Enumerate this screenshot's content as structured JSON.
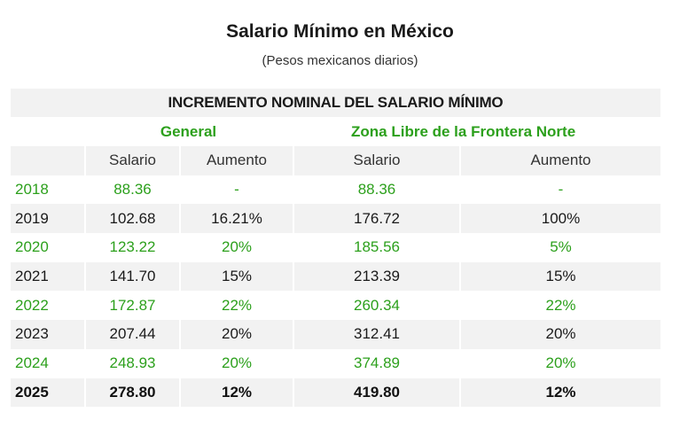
{
  "title": "Salario Mínimo en México",
  "subtitle": "(Pesos mexicanos diarios)",
  "table": {
    "band_title": "INCREMENTO NOMINAL DEL SALARIO MÍNIMO",
    "group_general": "General",
    "group_frontera": "Zona Libre de la Frontera Norte",
    "col_salario": "Salario",
    "col_aumento": "Aumento",
    "accent_color": "#2ca01c",
    "rows": [
      {
        "year": "2018",
        "gen_salario": "88.36",
        "gen_aumento": "-",
        "zlfn_salario": "88.36",
        "zlfn_aumento": "-"
      },
      {
        "year": "2019",
        "gen_salario": "102.68",
        "gen_aumento": "16.21%",
        "zlfn_salario": "176.72",
        "zlfn_aumento": "100%"
      },
      {
        "year": "2020",
        "gen_salario": "123.22",
        "gen_aumento": "20%",
        "zlfn_salario": "185.56",
        "zlfn_aumento": "5%"
      },
      {
        "year": "2021",
        "gen_salario": "141.70",
        "gen_aumento": "15%",
        "zlfn_salario": "213.39",
        "zlfn_aumento": "15%"
      },
      {
        "year": "2022",
        "gen_salario": "172.87",
        "gen_aumento": "22%",
        "zlfn_salario": "260.34",
        "zlfn_aumento": "22%"
      },
      {
        "year": "2023",
        "gen_salario": "207.44",
        "gen_aumento": "20%",
        "zlfn_salario": "312.41",
        "zlfn_aumento": "20%"
      },
      {
        "year": "2024",
        "gen_salario": "248.93",
        "gen_aumento": "20%",
        "zlfn_salario": "374.89",
        "zlfn_aumento": "20%"
      },
      {
        "year": "2025",
        "gen_salario": "278.80",
        "gen_aumento": "12%",
        "zlfn_salario": "419.80",
        "zlfn_aumento": "12%"
      }
    ]
  }
}
